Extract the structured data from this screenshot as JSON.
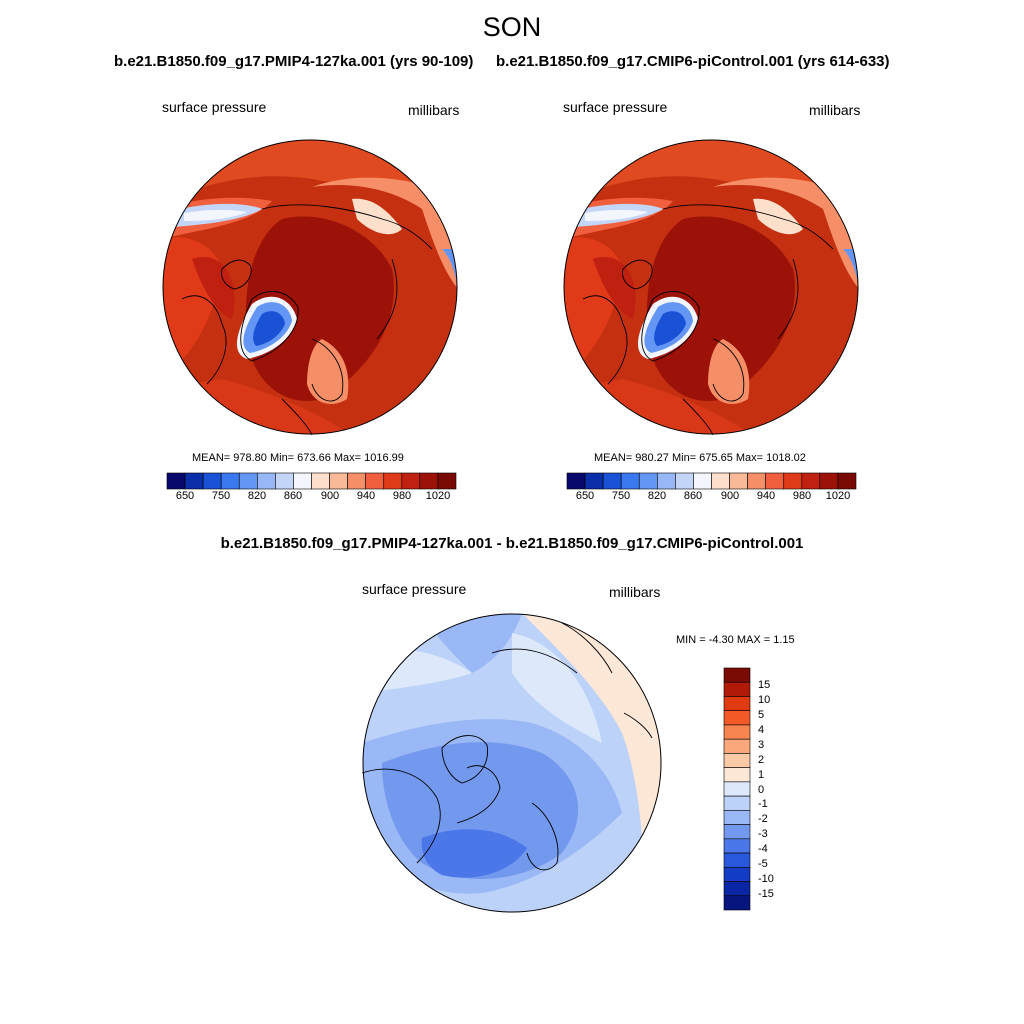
{
  "figure": {
    "title": "SON",
    "variable": "surface pressure",
    "units": "millibars"
  },
  "left_panel": {
    "title": "b.e21.B1850.f09_g17.PMIP4-127ka.001 (yrs 90-109)",
    "stats": "MEAN= 978.80  Min= 673.66  Max= 1016.99"
  },
  "right_panel": {
    "title": "b.e21.B1850.f09_g17.CMIP6-piControl.001 (yrs 614-633)",
    "stats": "MEAN= 980.27  Min= 675.65  Max= 1018.02"
  },
  "diff_panel": {
    "title": "b.e21.B1850.f09_g17.PMIP4-127ka.001 - b.e21.B1850.f09_g17.CMIP6-piControl.001",
    "stats": "MIN =  -4.30 MAX =   1.15"
  },
  "colorbar_abs": {
    "colors": [
      "#08086b",
      "#0a2fa8",
      "#1a52d6",
      "#3a78ef",
      "#6497f5",
      "#97b7f7",
      "#c4d6f8",
      "#f3f6fc",
      "#fde0cc",
      "#f9b896",
      "#f68f68",
      "#f0603f",
      "#e03a18",
      "#c02010",
      "#9c1208",
      "#7a0a04"
    ],
    "labels": [
      "650",
      "750",
      "820",
      "860",
      "900",
      "940",
      "980",
      "1020"
    ]
  },
  "colorbar_diff": {
    "colors": [
      "#7a0a04",
      "#b01a06",
      "#e03a10",
      "#f45a28",
      "#f7854f",
      "#faa77c",
      "#fcc9a7",
      "#fde8d8",
      "#dde9fb",
      "#bcd2f8",
      "#9ab8f5",
      "#7399ef",
      "#4b77e8",
      "#2a58dc",
      "#143cc4",
      "#0a26a4",
      "#061580"
    ],
    "labels": [
      "15",
      "10",
      "5",
      "4",
      "3",
      "2",
      "1",
      "0",
      "-1",
      "-2",
      "-3",
      "-4",
      "-5",
      "-10",
      "-15"
    ]
  }
}
